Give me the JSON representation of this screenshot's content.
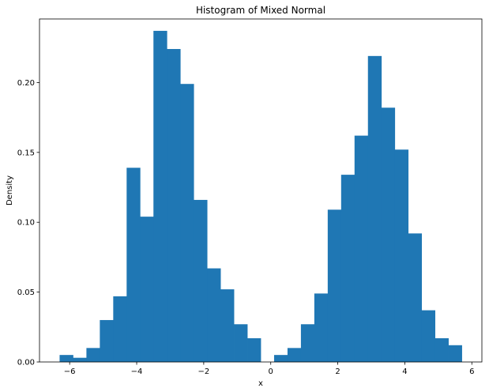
{
  "chart_data": {
    "type": "bar",
    "title": "Histogram of Mixed Normal",
    "xlabel": "x",
    "ylabel": "Density",
    "xlim": [
      -6.9,
      6.3
    ],
    "ylim": [
      0,
      0.2455
    ],
    "x_ticks": [
      -6,
      -4,
      -2,
      0,
      2,
      4,
      6
    ],
    "x_tick_labels": [
      "−6",
      "−4",
      "−2",
      "0",
      "2",
      "4",
      "6"
    ],
    "y_ticks": [
      0.0,
      0.05,
      0.1,
      0.15,
      0.2
    ],
    "y_tick_labels": [
      "0.00",
      "0.05",
      "0.10",
      "0.15",
      "0.20"
    ],
    "grid": false,
    "legend": false,
    "bar_color": "#1f77b4",
    "bin_edges": [
      -6.3,
      -5.9,
      -5.5,
      -5.1,
      -4.7,
      -4.3,
      -3.9,
      -3.5,
      -3.1,
      -2.7,
      -2.3,
      -1.9,
      -1.5,
      -1.1,
      -0.7,
      -0.3,
      0.1,
      0.5,
      0.9,
      1.3,
      1.7,
      2.1,
      2.5,
      2.9,
      3.3,
      3.7,
      4.1,
      4.5,
      4.9,
      5.3,
      5.7
    ],
    "values": [
      0.005,
      0.003,
      0.01,
      0.03,
      0.047,
      0.139,
      0.104,
      0.237,
      0.224,
      0.199,
      0.116,
      0.067,
      0.052,
      0.027,
      0.017,
      0.0,
      0.005,
      0.01,
      0.027,
      0.049,
      0.109,
      0.134,
      0.162,
      0.219,
      0.182,
      0.152,
      0.092,
      0.037,
      0.017,
      0.012
    ]
  }
}
